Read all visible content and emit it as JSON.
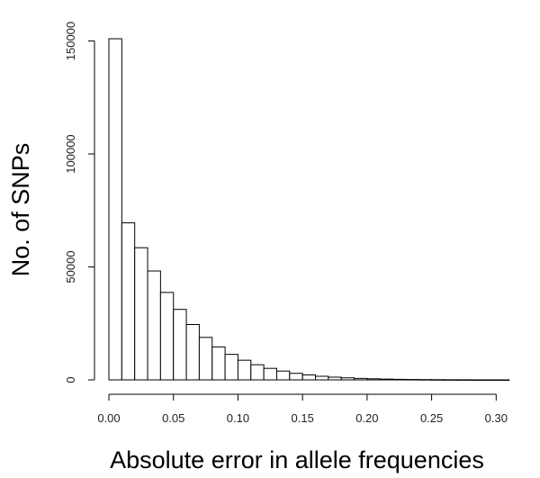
{
  "chart_data": {
    "type": "bar",
    "subtype": "histogram",
    "title": "",
    "xlabel": "Absolute error in allele frequencies",
    "ylabel": "No. of SNPs",
    "bin_width": 0.01,
    "bin_starts": [
      0.0,
      0.01,
      0.02,
      0.03,
      0.04,
      0.05,
      0.06,
      0.07,
      0.08,
      0.09,
      0.1,
      0.11,
      0.12,
      0.13,
      0.14,
      0.15,
      0.16,
      0.17,
      0.18,
      0.19,
      0.2,
      0.21,
      0.22,
      0.23,
      0.24,
      0.25,
      0.26,
      0.27,
      0.28,
      0.29,
      0.3
    ],
    "values": [
      151000,
      69500,
      58500,
      48200,
      38700,
      31200,
      24500,
      18800,
      14600,
      11300,
      8700,
      6700,
      5100,
      3900,
      2900,
      2200,
      1600,
      1200,
      900,
      650,
      480,
      340,
      240,
      170,
      120,
      85,
      60,
      42,
      30,
      20,
      14
    ],
    "xlim": [
      0,
      0.32
    ],
    "ylim": [
      0,
      155000
    ],
    "x_ticks": [
      "0.00",
      "0.05",
      "0.10",
      "0.15",
      "0.20",
      "0.25",
      "0.30"
    ],
    "y_ticks": [
      "0",
      "50000",
      "100000",
      "150000"
    ],
    "grid": false,
    "bar_fill": "#ffffff",
    "bar_stroke": "#000000"
  }
}
